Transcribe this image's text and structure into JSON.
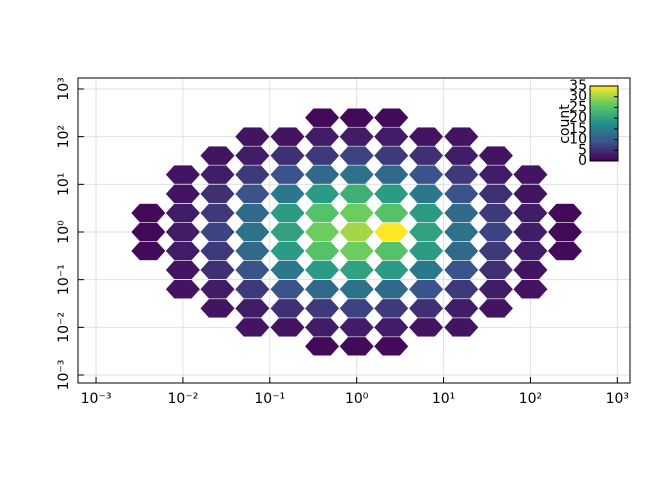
{
  "chart_data": {
    "type": "hexbin",
    "x": [
      0.004,
      0.01,
      0.025,
      0.063,
      0.16,
      0.4,
      1,
      2.5,
      6.3,
      16,
      40,
      100,
      250
    ],
    "y": [
      0.004,
      0.01,
      0.025,
      0.063,
      0.16,
      0.4,
      1,
      2.5,
      6.3,
      16,
      40,
      100,
      250
    ],
    "values": [
      [
        null,
        null,
        null,
        null,
        null,
        1,
        1,
        1,
        null,
        null,
        null,
        null,
        null
      ],
      [
        null,
        null,
        null,
        2,
        2,
        3,
        3,
        3,
        2,
        2,
        null,
        null,
        null
      ],
      [
        null,
        null,
        2,
        3,
        5,
        6,
        7,
        6,
        5,
        3,
        2,
        null,
        null
      ],
      [
        null,
        2,
        3,
        6,
        9,
        12,
        13,
        12,
        9,
        6,
        3,
        2,
        null
      ],
      [
        null,
        2,
        5,
        9,
        14,
        19,
        20,
        19,
        14,
        9,
        5,
        2,
        null
      ],
      [
        1,
        3,
        6,
        12,
        19,
        25,
        27,
        25,
        19,
        12,
        6,
        3,
        1
      ],
      [
        1,
        3,
        7,
        13,
        20,
        27,
        30,
        35,
        20,
        13,
        7,
        3,
        1
      ],
      [
        1,
        3,
        6,
        12,
        19,
        25,
        27,
        25,
        19,
        12,
        6,
        3,
        1
      ],
      [
        null,
        2,
        5,
        9,
        14,
        19,
        22,
        19,
        14,
        9,
        5,
        2,
        null
      ],
      [
        null,
        2,
        3,
        6,
        9,
        12,
        13,
        12,
        9,
        6,
        3,
        2,
        null
      ],
      [
        null,
        null,
        2,
        3,
        5,
        6,
        7,
        6,
        5,
        3,
        2,
        null,
        null
      ],
      [
        null,
        null,
        null,
        2,
        2,
        3,
        3,
        3,
        2,
        2,
        null,
        null,
        null
      ],
      [
        null,
        null,
        null,
        null,
        null,
        1,
        1,
        1,
        null,
        null,
        null,
        null,
        null
      ]
    ],
    "xlim": [
      0.00062,
      1400
    ],
    "ylim": [
      0.00068,
      1700
    ],
    "xscale": "log",
    "yscale": "log",
    "grid": true,
    "xticks": [
      {
        "value": 0.001,
        "label": "10⁻³"
      },
      {
        "value": 0.01,
        "label": "10⁻²"
      },
      {
        "value": 0.1,
        "label": "10⁻¹"
      },
      {
        "value": 1,
        "label": "10⁰"
      },
      {
        "value": 10,
        "label": "10¹"
      },
      {
        "value": 100,
        "label": "10²"
      },
      {
        "value": 1000,
        "label": "10³"
      }
    ],
    "yticks": [
      {
        "value": 0.001,
        "label": "10⁻³"
      },
      {
        "value": 0.01,
        "label": "10⁻²"
      },
      {
        "value": 0.1,
        "label": "10⁻¹"
      },
      {
        "value": 1,
        "label": "10⁰"
      },
      {
        "value": 10,
        "label": "10¹"
      },
      {
        "value": 100,
        "label": "10²"
      },
      {
        "value": 1000,
        "label": "10³"
      }
    ],
    "colorbar": {
      "label": "count",
      "clim": [
        0,
        35
      ],
      "ticks": [
        0,
        5,
        10,
        15,
        20,
        25,
        30,
        35
      ],
      "colormap": [
        "#440154",
        "#3b528b",
        "#21918c",
        "#5ec962",
        "#fde725"
      ]
    }
  }
}
